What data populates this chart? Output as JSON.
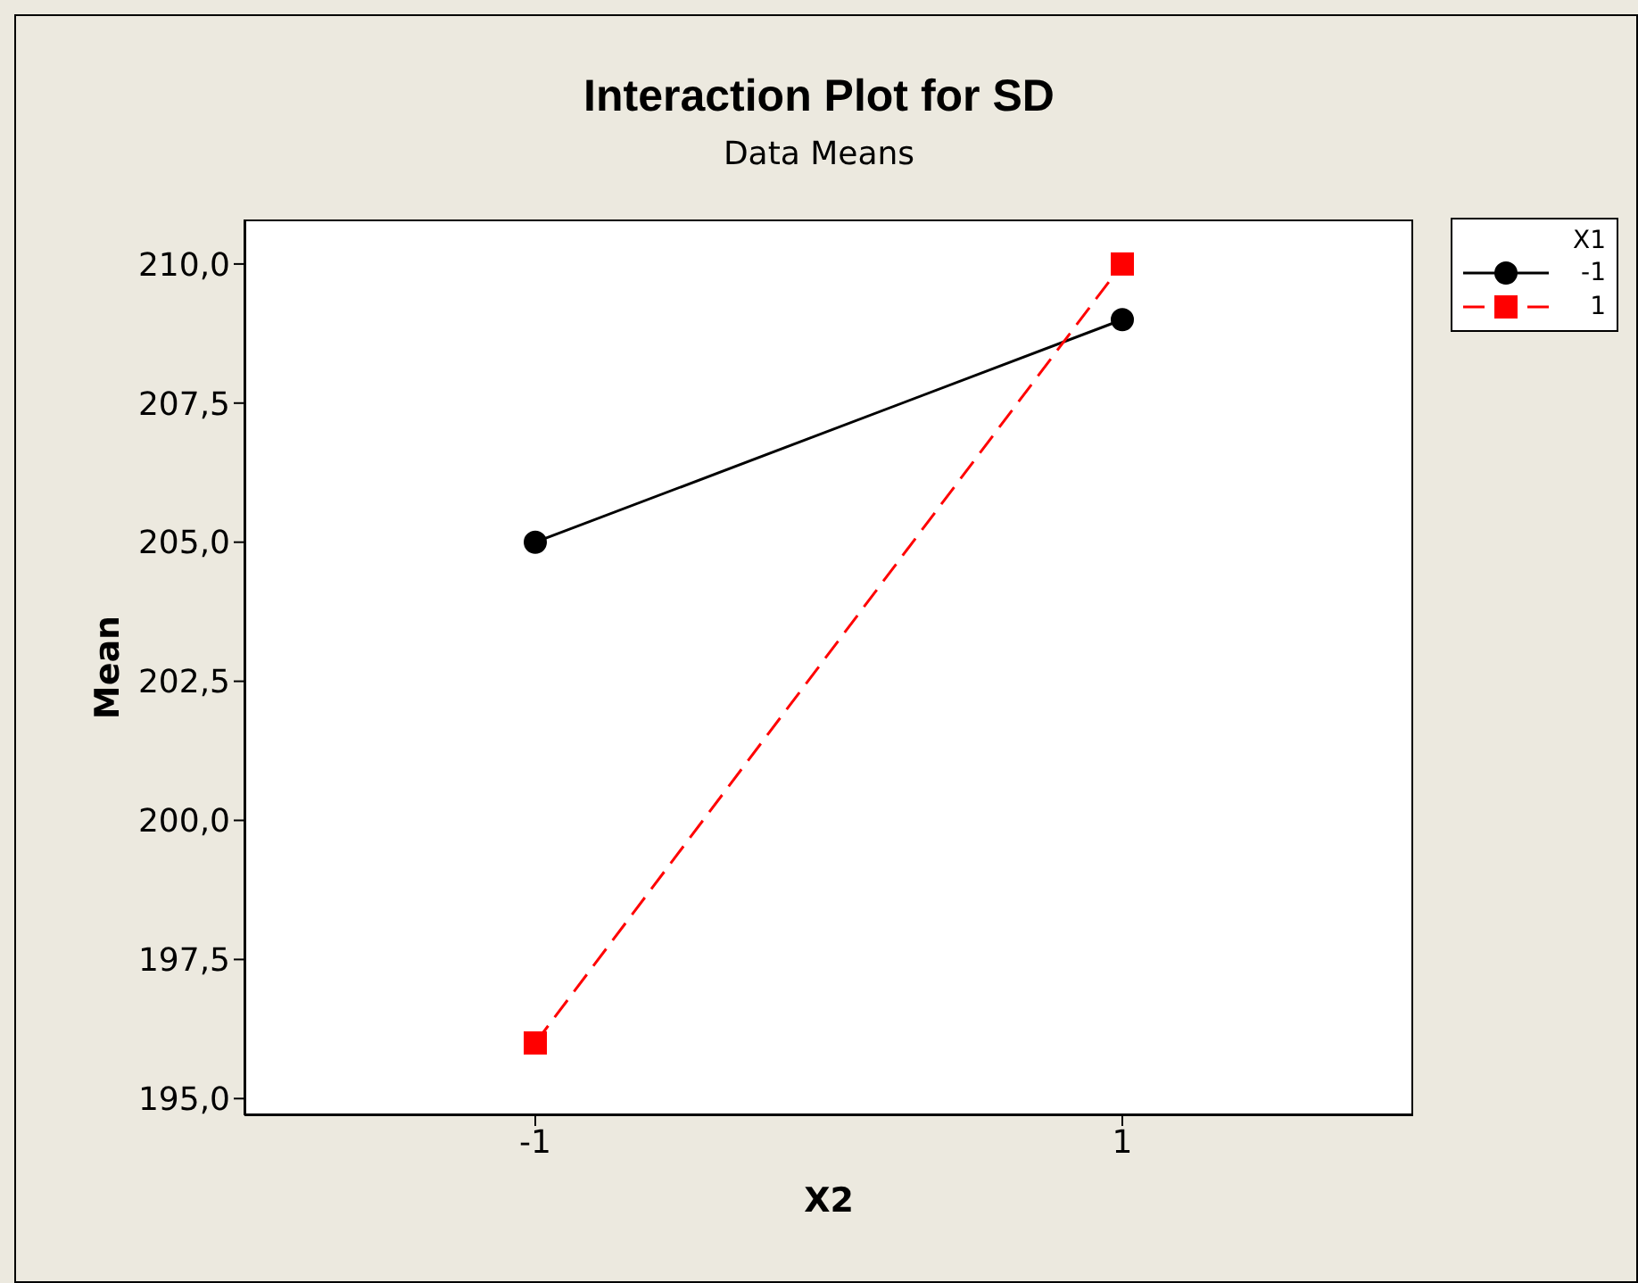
{
  "chart_data": {
    "type": "line",
    "title": "Interaction Plot for SD",
    "subtitle": "Data Means",
    "xlabel": "X2",
    "ylabel": "Mean",
    "legend_title": "X1",
    "categories": [
      "-1",
      "1"
    ],
    "series": [
      {
        "name": "-1",
        "color": "#000000",
        "values": [
          205,
          209
        ],
        "marker": "circle",
        "line_style": "solid"
      },
      {
        "name": "1",
        "color": "#ff0000",
        "values": [
          196,
          210
        ],
        "marker": "square",
        "line_style": "dashed"
      }
    ],
    "ylim": [
      194.7,
      210.8
    ],
    "yticks": [
      {
        "value": 195,
        "label": "195,0"
      },
      {
        "value": 197.5,
        "label": "197,5"
      },
      {
        "value": 200,
        "label": "200,0"
      },
      {
        "value": 202.5,
        "label": "202,5"
      },
      {
        "value": 205,
        "label": "205,0"
      },
      {
        "value": 207.5,
        "label": "207,5"
      },
      {
        "value": 210,
        "label": "210,0"
      }
    ],
    "legend": "top right"
  }
}
